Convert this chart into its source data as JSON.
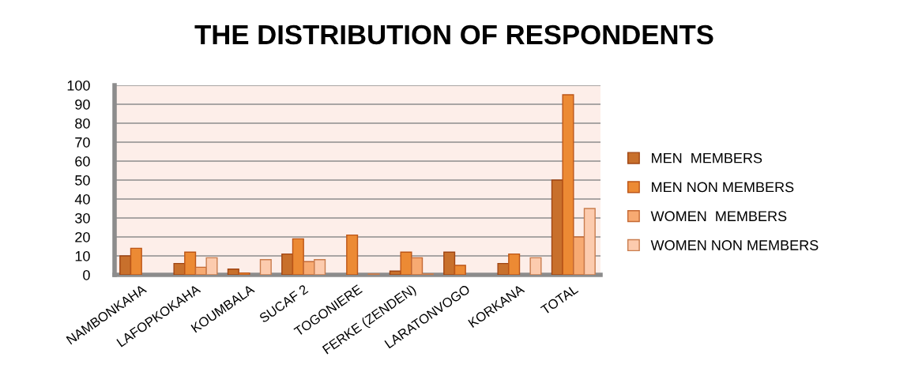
{
  "chart_data": {
    "type": "bar",
    "title": "THE DISTRIBUTION OF RESPONDENTS",
    "categories": [
      "NAMBONKAHA",
      "LAFOPKOKAHA",
      "KOUMBALA",
      "SUCAF 2",
      "TOGONIERE",
      "FERKE (ZENDEN)",
      "LARATONVOGO",
      "KORKANA",
      "TOTAL"
    ],
    "series": [
      {
        "name": "MEN  MEMBERS",
        "color": "#c8702c",
        "values": [
          10,
          6,
          3,
          11,
          null,
          2,
          12,
          6,
          50
        ]
      },
      {
        "name": "MEN NON MEMBERS",
        "color": "#ec8a34",
        "values": [
          14,
          12,
          1,
          19,
          21,
          12,
          5,
          11,
          95
        ]
      },
      {
        "name": "WOMEN  MEMBERS",
        "color": "#f7aa72",
        "values": [
          null,
          4,
          null,
          7,
          null,
          9,
          null,
          null,
          20
        ]
      },
      {
        "name": "WOMEN NON MEMBERS",
        "color": "#fccbae",
        "values": [
          null,
          9,
          8,
          8,
          0.5,
          0.5,
          null,
          9,
          35
        ]
      }
    ],
    "ylim": [
      0,
      100
    ],
    "yticks": [
      0,
      10,
      20,
      30,
      40,
      50,
      60,
      70,
      80,
      90,
      100
    ],
    "grid": "y",
    "legend": "right"
  }
}
